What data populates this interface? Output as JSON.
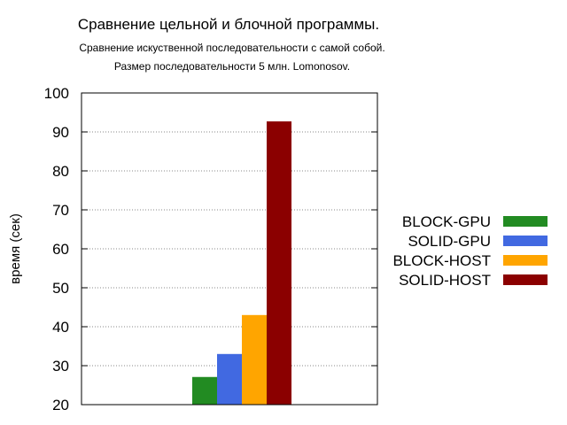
{
  "chart_data": {
    "type": "bar",
    "title": "Сравнение цельной и блочной программы.",
    "subtitle": [
      "Сравнение искуственной последовательности с самой собой.",
      "Размер последовательности 5 млн. Lomonosov."
    ],
    "xlabel": "",
    "ylabel": "время (сек)",
    "ylim": [
      20,
      100
    ],
    "yticks": [
      20,
      30,
      40,
      50,
      60,
      70,
      80,
      90,
      100
    ],
    "grid": true,
    "legend_position": "right",
    "series": [
      {
        "name": "BLOCK-GPU",
        "value": 27.1,
        "color": "#228b22"
      },
      {
        "name": "SOLID-GPU",
        "value": 33.0,
        "color": "#4169e1"
      },
      {
        "name": "BLOCK-HOST",
        "value": 43.0,
        "color": "#ffa500"
      },
      {
        "name": "SOLID-HOST",
        "value": 92.7,
        "color": "#8b0000"
      }
    ]
  }
}
